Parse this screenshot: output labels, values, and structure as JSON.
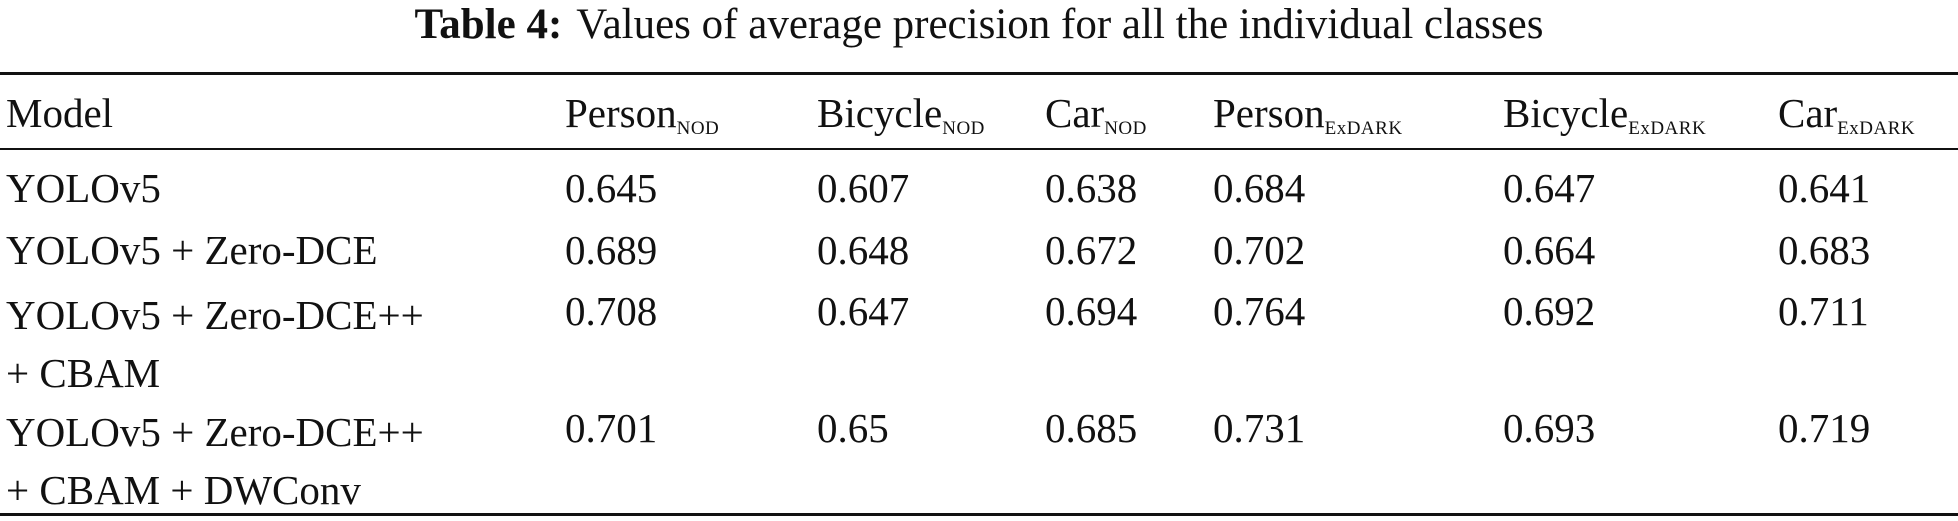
{
  "table": {
    "caption_label": "Table 4:",
    "caption_text": "Values of average precision for all the individual classes",
    "header": {
      "model": "Model",
      "columns": [
        {
          "name": "Person",
          "sub": "NOD"
        },
        {
          "name": "Bicycle",
          "sub": "NOD"
        },
        {
          "name": "Car",
          "sub": "NOD"
        },
        {
          "name": "Person",
          "sub": "ExDARK"
        },
        {
          "name": "Bicycle",
          "sub": "ExDARK"
        },
        {
          "name": "Car",
          "sub": "ExDARK"
        }
      ]
    },
    "rows": [
      {
        "model_lines": [
          "YOLOv5"
        ],
        "values": [
          "0.645",
          "0.607",
          "0.638",
          "0.684",
          "0.647",
          "0.641"
        ]
      },
      {
        "model_lines": [
          "YOLOv5 + Zero-DCE"
        ],
        "values": [
          "0.689",
          "0.648",
          "0.672",
          "0.702",
          "0.664",
          "0.683"
        ]
      },
      {
        "model_lines": [
          "YOLOv5 + Zero-DCE++",
          "+ CBAM"
        ],
        "values": [
          "0.708",
          "0.647",
          "0.694",
          "0.764",
          "0.692",
          "0.711"
        ]
      },
      {
        "model_lines": [
          "YOLOv5 + Zero-DCE++",
          "+ CBAM + DWConv"
        ],
        "values": [
          "0.701",
          "0.65",
          "0.685",
          "0.731",
          "0.693",
          "0.719"
        ]
      }
    ]
  }
}
